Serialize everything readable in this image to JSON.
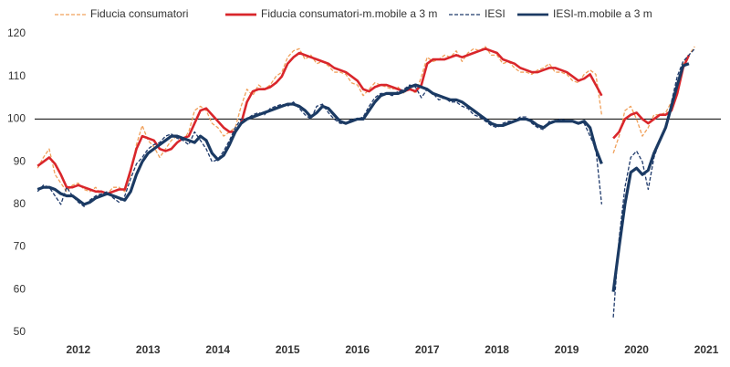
{
  "chart_data": {
    "type": "line",
    "categories": [
      null,
      null,
      null,
      null,
      null,
      null,
      null,
      "2012",
      null,
      null,
      null,
      null,
      null,
      null,
      null,
      null,
      null,
      null,
      null,
      "2013",
      null,
      null,
      null,
      null,
      null,
      null,
      null,
      null,
      null,
      null,
      null,
      "2014",
      null,
      null,
      null,
      null,
      null,
      null,
      null,
      null,
      null,
      null,
      null,
      "2015",
      null,
      null,
      null,
      null,
      null,
      null,
      null,
      null,
      null,
      null,
      null,
      "2016",
      null,
      null,
      null,
      null,
      null,
      null,
      null,
      null,
      null,
      null,
      null,
      "2017",
      null,
      null,
      null,
      null,
      null,
      null,
      null,
      null,
      null,
      null,
      null,
      "2018",
      null,
      null,
      null,
      null,
      null,
      null,
      null,
      null,
      null,
      null,
      null,
      "2019",
      null,
      null,
      null,
      null,
      null,
      null,
      null,
      null,
      null,
      null,
      null,
      "2020",
      null,
      null,
      null,
      null,
      null,
      null,
      null,
      null,
      null,
      null,
      null,
      "2021",
      null,
      null
    ],
    "series": [
      {
        "name": "Fiducia consumatori",
        "color": "#f0a05a",
        "dashed": true,
        "values": [
          88.5,
          91,
          93,
          87,
          85,
          83,
          84.5,
          85,
          83.5,
          83,
          84,
          82,
          82.5,
          84,
          84,
          83,
          87,
          94,
          98.5,
          95,
          93.5,
          91,
          93,
          95,
          96,
          95,
          97,
          102,
          103,
          102,
          99,
          98,
          96,
          97,
          98,
          103,
          107,
          105.5,
          108,
          107,
          108,
          110,
          111,
          114.5,
          116,
          116.5,
          114,
          115,
          113,
          113.5,
          112.5,
          111,
          111,
          110.5,
          108.5,
          108,
          105.5,
          107,
          108.5,
          108,
          107.5,
          107,
          107.5,
          106,
          107.5,
          106,
          110,
          114.5,
          113.5,
          114,
          115,
          114.5,
          116,
          113.5,
          115.5,
          116.5,
          116,
          117,
          115,
          115,
          113,
          113.5,
          112,
          111,
          111,
          110.5,
          111.5,
          112,
          113,
          111,
          111,
          110.5,
          109,
          108.5,
          110.5,
          111.5,
          110.5,
          101,
          null,
          92,
          96,
          102,
          103,
          100,
          96,
          98,
          101,
          101,
          101.5,
          104,
          108,
          113,
          115,
          117,
          null,
          null,
          null,
          null
        ]
      },
      {
        "name": "Fiducia consumatori-m.mobile a 3 m",
        "color": "#d9262b",
        "dashed": false,
        "values": [
          89,
          90,
          91,
          89.5,
          87,
          84,
          84,
          84.5,
          84,
          83.5,
          83,
          83,
          82.5,
          83,
          83.5,
          83.5,
          88,
          93,
          96,
          95.5,
          95,
          93,
          92.5,
          93,
          94.5,
          95.5,
          96,
          99,
          102,
          102.5,
          101,
          99.5,
          98,
          97,
          97,
          99,
          104,
          106.5,
          107,
          107,
          107.5,
          108.5,
          110,
          113,
          114.5,
          115.5,
          115,
          114.5,
          114,
          113.5,
          113,
          112,
          111.5,
          111,
          110,
          109,
          107,
          106.5,
          107.5,
          108,
          108,
          107.5,
          107,
          106.5,
          107,
          106.5,
          108,
          113,
          114,
          114,
          114,
          114.5,
          115,
          114.5,
          115,
          115.5,
          116,
          116.5,
          116,
          115.5,
          114,
          113.5,
          113,
          112,
          111.5,
          111,
          111,
          111.5,
          112,
          112,
          111.5,
          111,
          110,
          109,
          109.5,
          110.5,
          108,
          105.5,
          null,
          95.5,
          97,
          100,
          101,
          101.5,
          100,
          99,
          100,
          101,
          101,
          102,
          106,
          112,
          115,
          null,
          null,
          null,
          null,
          null
        ]
      },
      {
        "name": "IESI",
        "color": "#1f3a6b",
        "dashed": true,
        "values": [
          83,
          84.5,
          84,
          82,
          80,
          84,
          82,
          80.5,
          79.5,
          81,
          82,
          82.5,
          83,
          81.5,
          80.5,
          82,
          86,
          89.5,
          91,
          93,
          94,
          94.5,
          96,
          96.5,
          95.5,
          95,
          94,
          97,
          95,
          93,
          90,
          90.5,
          92.5,
          95,
          98,
          100,
          100,
          101,
          101.5,
          101,
          102.5,
          103,
          103.5,
          103,
          104,
          102.5,
          101,
          100,
          103,
          103.5,
          101.5,
          100,
          99,
          99,
          100,
          100,
          100.5,
          103,
          105,
          106,
          106,
          105.5,
          106.5,
          107,
          108,
          107.5,
          105,
          107,
          106,
          104.5,
          105,
          104,
          104,
          103,
          102.5,
          101,
          100.5,
          99.5,
          98.5,
          98,
          99,
          99.5,
          99.5,
          100.5,
          100.5,
          99,
          98,
          97.5,
          99.5,
          99.5,
          100,
          99.5,
          99.5,
          99,
          99,
          96,
          93,
          80,
          null,
          53.5,
          72,
          84,
          91,
          92.5,
          90,
          83.5,
          91,
          95,
          98,
          104,
          110,
          113.5,
          115,
          116.5,
          null,
          null,
          null,
          null
        ]
      },
      {
        "name": "IESI-m.mobile a 3 m",
        "color": "#1b3a63",
        "dashed": false,
        "values": [
          83.5,
          84,
          84,
          83.5,
          82.5,
          82,
          82,
          81,
          80,
          80.5,
          81.5,
          82,
          82.5,
          82,
          81.5,
          81,
          83,
          87,
          90,
          92,
          93,
          94,
          95,
          96,
          96,
          95.5,
          95,
          94.5,
          96,
          95,
          92,
          90.5,
          91.5,
          94,
          97,
          99,
          100,
          100.5,
          101,
          101.5,
          102,
          102.5,
          103,
          103.5,
          103.5,
          103,
          102,
          100.5,
          101.5,
          103,
          102.5,
          101,
          99.5,
          99,
          99.5,
          100,
          100,
          102,
          104,
          105.5,
          106,
          106,
          106,
          106.5,
          107.5,
          108,
          107.5,
          107,
          106,
          105.5,
          105,
          104.5,
          104.5,
          104,
          103,
          102,
          101,
          100,
          99,
          98.5,
          98.5,
          99,
          99.5,
          100,
          100,
          99.5,
          98.5,
          98,
          99,
          99.5,
          99.5,
          99.5,
          99.5,
          99,
          99.5,
          98,
          93,
          89.5,
          null,
          59.5,
          70,
          80,
          87.5,
          88.5,
          87,
          88,
          92,
          95,
          98,
          103,
          108,
          112.5,
          113,
          null,
          null,
          null,
          null,
          null
        ]
      }
    ],
    "ylim": [
      50,
      120
    ],
    "yticks": [
      50,
      60,
      70,
      80,
      90,
      100,
      110,
      120
    ],
    "reference_line": 100
  }
}
